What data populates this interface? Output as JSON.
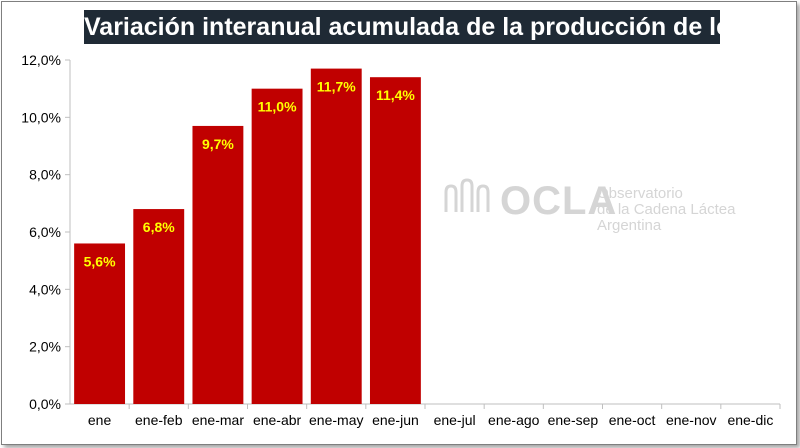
{
  "chart_data": {
    "type": "bar",
    "title": "Variación interanual acumulada de la producción de leche",
    "categories": [
      "ene",
      "ene-feb",
      "ene-mar",
      "ene-abr",
      "ene-may",
      "ene-jun",
      "ene-jul",
      "ene-ago",
      "ene-sep",
      "ene-oct",
      "ene-nov",
      "ene-dic"
    ],
    "values": [
      5.6,
      6.8,
      9.7,
      11.0,
      11.7,
      11.4,
      null,
      null,
      null,
      null,
      null,
      null
    ],
    "data_labels": [
      "5,6%",
      "6,8%",
      "9,7%",
      "11,0%",
      "11,7%",
      "11,4%",
      "",
      "",
      "",
      "",
      "",
      ""
    ],
    "ylim": [
      0,
      12
    ],
    "yticks": [
      0,
      2,
      4,
      6,
      8,
      10,
      12
    ],
    "ytick_labels": [
      "0,0%",
      "2,0%",
      "4,0%",
      "6,0%",
      "8,0%",
      "10,0%",
      "12,0%"
    ],
    "xlabel": "",
    "ylabel": "",
    "grid": false,
    "legend": "none",
    "bar_color": "#c00000",
    "label_color": "#ffff00"
  },
  "watermark": {
    "brand": "OCLA",
    "line1": "Observatorio",
    "line2": "de la Cadena Láctea",
    "line3": "Argentina",
    "icon": "milk-waves-icon"
  }
}
